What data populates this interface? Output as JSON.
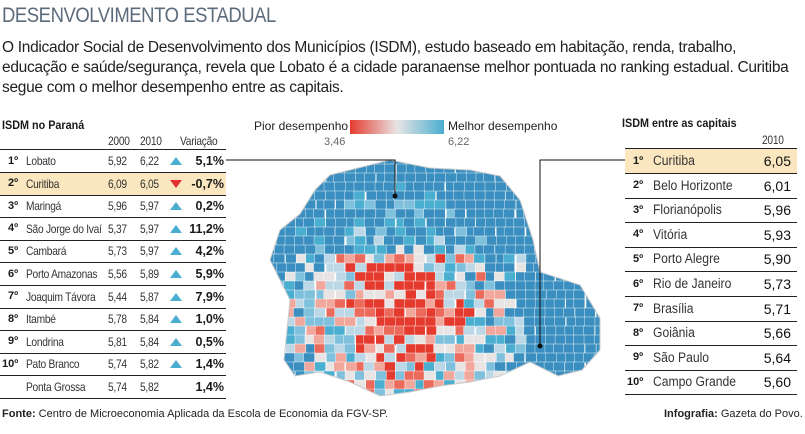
{
  "title": "DESENVOLVIMENTO ESTADUAL",
  "intro": "O Indicador Social de Desenvolvimento dos Municípios (ISDM), estudo baseado em habitação, renda, trabalho, educação e saúde/segurança, revela que Lobato é a cidade paranaense melhor pontuada no ranking estadual. Curitiba segue com o melhor desempenho entre as capitais.",
  "legend": {
    "low_label": "Pior desempenho",
    "low_value": "3,46",
    "high_label": "Melhor desempenho",
    "high_value": "6,22",
    "colors": {
      "low": "#e53b2f",
      "mid": "#e8e4e4",
      "high": "#4aaed0"
    }
  },
  "chart_data": [
    {
      "type": "table",
      "title": "ISDM no Paraná",
      "columns": [
        "2000",
        "2010",
        "Variação"
      ],
      "rows": [
        {
          "rank": "1º",
          "name": "Lobato",
          "y2000": "5,92",
          "y2010": "6,22",
          "var": "5,1%",
          "trend": "up"
        },
        {
          "rank": "2º",
          "name": "Curitiba",
          "y2000": "6,09",
          "y2010": "6,05",
          "var": "-0,7%",
          "trend": "down",
          "highlight": true
        },
        {
          "rank": "3º",
          "name": "Maringá",
          "y2000": "5,96",
          "y2010": "5,97",
          "var": "0,2%",
          "trend": "up"
        },
        {
          "rank": "4º",
          "name": "São Jorge do Ivaí",
          "y2000": "5,37",
          "y2010": "5,97",
          "var": "11,2%",
          "trend": "up"
        },
        {
          "rank": "5º",
          "name": "Cambará",
          "y2000": "5,73",
          "y2010": "5,97",
          "var": "4,2%",
          "trend": "up"
        },
        {
          "rank": "6º",
          "name": "Porto Amazonas",
          "y2000": "5,56",
          "y2010": "5,89",
          "var": "5,9%",
          "trend": "up"
        },
        {
          "rank": "7º",
          "name": "Joaquim Távora",
          "y2000": "5,44",
          "y2010": "5,87",
          "var": "7,9%",
          "trend": "up"
        },
        {
          "rank": "8º",
          "name": "Itambé",
          "y2000": "5,78",
          "y2010": "5,84",
          "var": "1,0%",
          "trend": "up"
        },
        {
          "rank": "9º",
          "name": "Londrina",
          "y2000": "5,81",
          "y2010": "5,84",
          "var": "0,5%",
          "trend": "up"
        },
        {
          "rank": "10º",
          "name": "Pato Branco",
          "y2000": "5,74",
          "y2010": "5,82",
          "var": "1,4%",
          "trend": "up"
        },
        {
          "rank": "",
          "name": "Ponta Grossa",
          "y2000": "5,74",
          "y2010": "5,82",
          "var": "1,4%",
          "trend": "none"
        }
      ]
    },
    {
      "type": "table",
      "title": "ISDM entre as capitais",
      "columns": [
        "2010"
      ],
      "rows": [
        {
          "rank": "1º",
          "name": "Curitiba",
          "y2010": "6,05",
          "highlight": true
        },
        {
          "rank": "2º",
          "name": "Belo Horizonte",
          "y2010": "6,01"
        },
        {
          "rank": "3º",
          "name": "Florianópolis",
          "y2010": "5,96"
        },
        {
          "rank": "4º",
          "name": "Vitória",
          "y2010": "5,93"
        },
        {
          "rank": "5º",
          "name": "Porto Alegre",
          "y2010": "5,90"
        },
        {
          "rank": "6º",
          "name": "Rio de Janeiro",
          "y2010": "5,73"
        },
        {
          "rank": "7º",
          "name": "Brasília",
          "y2010": "5,71"
        },
        {
          "rank": "8º",
          "name": "Goiânia",
          "y2010": "5,66"
        },
        {
          "rank": "9º",
          "name": "São Paulo",
          "y2010": "5,64"
        },
        {
          "rank": "10º",
          "name": "Campo Grande",
          "y2010": "5,60"
        }
      ]
    }
  ],
  "footer": {
    "source_label": "Fonte:",
    "source": "Centro de Microeconomia Aplicada da Escola de Economia da FGV-SP.",
    "credit_label": "Infografia:",
    "credit": "Gazeta do Povo."
  }
}
